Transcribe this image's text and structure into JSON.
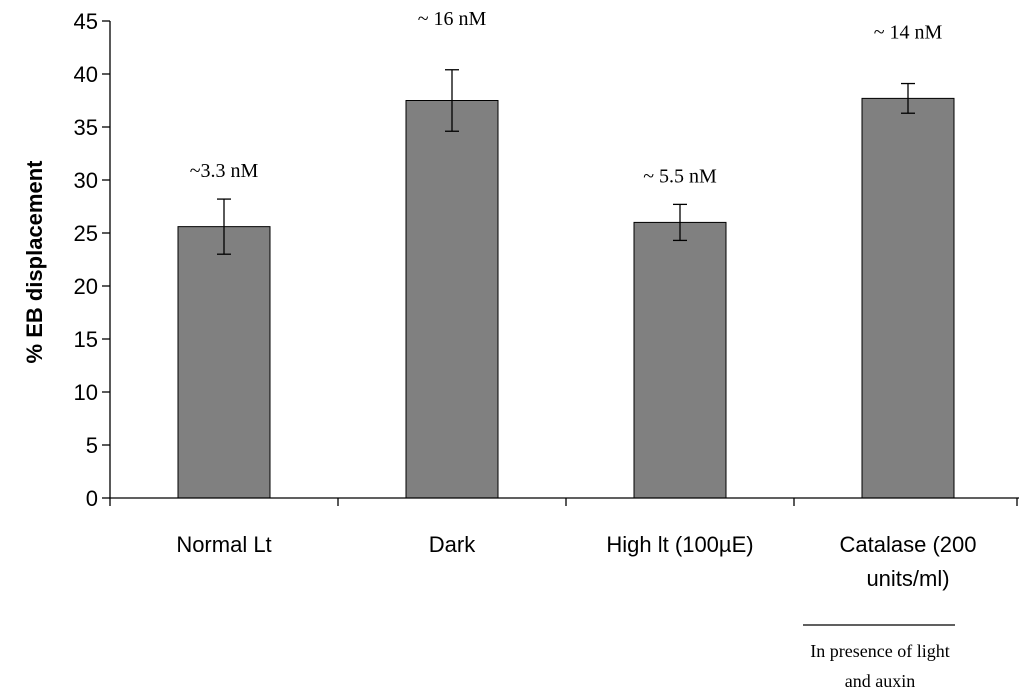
{
  "chart_data": {
    "type": "bar",
    "ylabel": "% EB displacement",
    "xlabel": "",
    "ylim": [
      0,
      45
    ],
    "yticks": [
      0,
      5,
      10,
      15,
      20,
      25,
      30,
      35,
      40,
      45
    ],
    "categories": [
      "Normal Lt",
      "Dark",
      "High lt (100µE)",
      [
        "Catalase (200",
        "units/ml)"
      ]
    ],
    "values": [
      25.6,
      37.5,
      26.0,
      37.7
    ],
    "errors": [
      2.6,
      2.9,
      1.7,
      1.4
    ],
    "bar_color": "#808080",
    "annotations": [
      "~3.3 nM",
      "~ 16 nM",
      "~ 5.5 nM",
      "~ 14 nM"
    ],
    "grid": false,
    "note": [
      "In presence of light",
      "and auxin"
    ]
  }
}
